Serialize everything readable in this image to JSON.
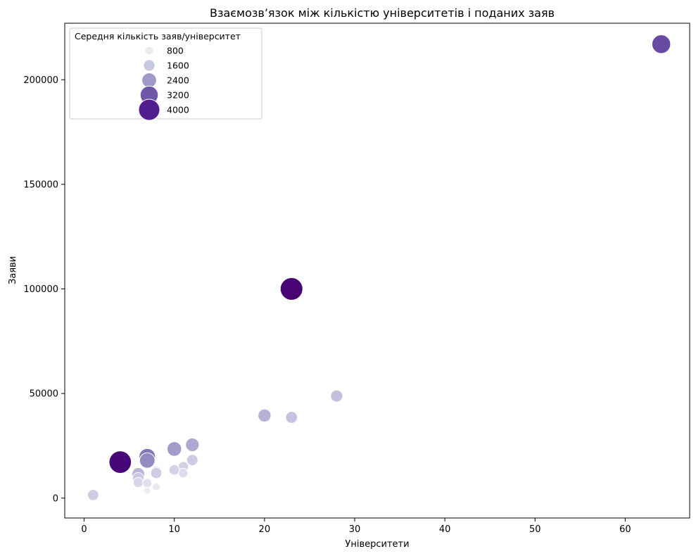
{
  "chart_data": {
    "type": "scatter",
    "title": "Взаємозв’язок між кількістю університетів і поданих заяв",
    "xlabel": "Університети",
    "ylabel": "Заяви",
    "xlim": [
      -2.15,
      67.15
    ],
    "ylim": [
      -9500,
      227000
    ],
    "x_ticks": [
      0,
      10,
      20,
      30,
      40,
      50,
      60
    ],
    "y_ticks": [
      0,
      50000,
      100000,
      150000,
      200000
    ],
    "grid": false,
    "size_variable": "Середня кількість заяв/університет",
    "legend": {
      "title": "Середня кількість заяв/університет",
      "placement": "top-left",
      "entries": [
        {
          "label": "800",
          "value": 800,
          "color": "#e9e8f3"
        },
        {
          "label": "1600",
          "value": 1600,
          "color": "#c9c8e1"
        },
        {
          "label": "2400",
          "value": 2400,
          "color": "#9f99c8"
        },
        {
          "label": "3200",
          "value": 3200,
          "color": "#6d58a8"
        },
        {
          "label": "4000",
          "value": 4000,
          "color": "#521d8e"
        }
      ]
    },
    "points": [
      {
        "x": 64,
        "y": 217000,
        "size": 3390
      },
      {
        "x": 23,
        "y": 100000,
        "size": 4350
      },
      {
        "x": 4,
        "y": 17200,
        "size": 4300
      },
      {
        "x": 28,
        "y": 48800,
        "size": 1740
      },
      {
        "x": 20,
        "y": 39500,
        "size": 1980
      },
      {
        "x": 23,
        "y": 38600,
        "size": 1680
      },
      {
        "x": 12,
        "y": 25500,
        "size": 2120
      },
      {
        "x": 10,
        "y": 23500,
        "size": 2350
      },
      {
        "x": 7,
        "y": 19800,
        "size": 2830
      },
      {
        "x": 7,
        "y": 18000,
        "size": 2570
      },
      {
        "x": 12,
        "y": 18200,
        "size": 1520
      },
      {
        "x": 11,
        "y": 15000,
        "size": 1360
      },
      {
        "x": 10,
        "y": 13500,
        "size": 1350
      },
      {
        "x": 8,
        "y": 12500,
        "size": 1560
      },
      {
        "x": 8,
        "y": 12000,
        "size": 1500
      },
      {
        "x": 11,
        "y": 12000,
        "size": 1090
      },
      {
        "x": 6,
        "y": 11500,
        "size": 1920
      },
      {
        "x": 6,
        "y": 9500,
        "size": 1580
      },
      {
        "x": 6,
        "y": 7500,
        "size": 1250
      },
      {
        "x": 7,
        "y": 7200,
        "size": 1030
      },
      {
        "x": 8,
        "y": 5500,
        "size": 690
      },
      {
        "x": 7,
        "y": 3500,
        "size": 500
      },
      {
        "x": 1,
        "y": 1500,
        "size": 1500
      }
    ]
  }
}
